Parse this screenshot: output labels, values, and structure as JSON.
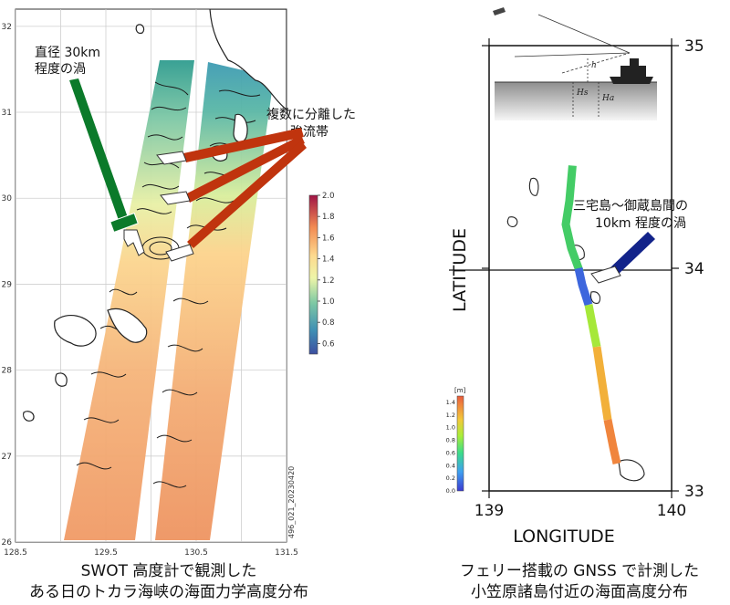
{
  "left_map": {
    "x_ticks": [
      "128.5",
      "129.5",
      "130.5",
      "131.5"
    ],
    "y_ticks": [
      "32",
      "31",
      "30",
      "29",
      "28",
      "27",
      "26"
    ],
    "y_ticks_values": [
      32,
      31,
      30,
      29,
      28,
      27,
      26
    ],
    "x_ticks_values": [
      128.5,
      129.5,
      130.5,
      131.5
    ],
    "xlim": [
      128.5,
      131.5
    ],
    "ylim": [
      26,
      32.2
    ],
    "colorbar_ticks": [
      "2.0",
      "1.8",
      "1.6",
      "1.4",
      "1.2",
      "1.0",
      "0.8",
      "0.6"
    ],
    "colorbar_range": [
      0.5,
      2.0
    ],
    "side_label": "496_021_20230420",
    "annot_eddy_line1": "直径 30km",
    "annot_eddy_line2": "程度の渦",
    "annot_jets_line1": "複数に分離した",
    "annot_jets_line2": "強流帯",
    "caption_line1": "SWOT 高度計で観測した",
    "caption_line2": "ある日のトカラ海峡の海面力学高度分布",
    "colors": {
      "eddy_arrow": "#0b7a2a",
      "jet_arrows": "#c0340e"
    }
  },
  "right_map": {
    "x_ticks": [
      "139",
      "140"
    ],
    "y_ticks": [
      "35",
      "34",
      "33"
    ],
    "x_ticks_values": [
      139,
      140
    ],
    "y_ticks_values": [
      35,
      34,
      33
    ],
    "xlabel": "LONGITUDE",
    "ylabel": "LATITUDE",
    "colorbar_unit": "[m]",
    "colorbar_ticks": [
      "1.4",
      "1.2",
      "1.0",
      "0.8",
      "0.6",
      "0.4",
      "0.2",
      "0.0"
    ],
    "colorbar_range": [
      0.0,
      1.5
    ],
    "inset_labels": [
      "h",
      "Hs",
      "Ha"
    ],
    "annot_line1": "三宅島～御蔵島間の",
    "annot_line2": "10km 程度の渦",
    "caption_line1": "フェリー搭載の GNSS で計測した",
    "caption_line2": "小笠原諸島付近の海面高度分布",
    "colors": {
      "annot_arrow": "#12238a"
    }
  }
}
